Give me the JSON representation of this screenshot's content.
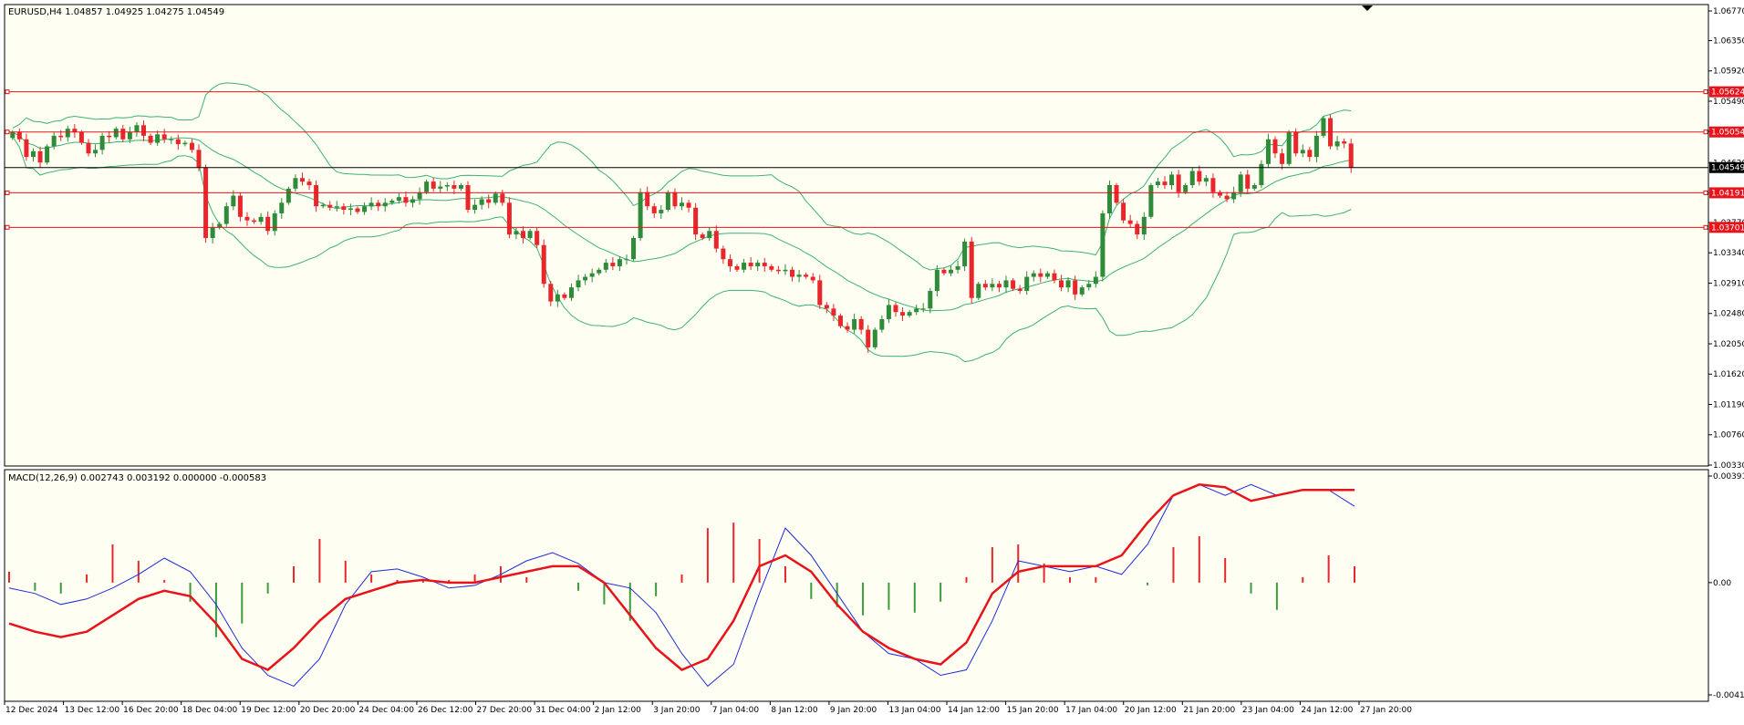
{
  "main_header": "EURUSD,H4  1.04857 1.04925 1.04275 1.04549",
  "macd_header": "MACD(12,26,9) 0.002743 0.003192 0.000000 -0.000583",
  "colors": {
    "background": "#fefef2",
    "bull_candle": "#2e8b3a",
    "bear_candle": "#e8262b",
    "bollinger": "#3cb371",
    "macd_line": "#1f2bd9",
    "signal_line": "#e8141b",
    "hist_pos": "#e8262b",
    "hist_neg": "#3c9c3c",
    "level_line": "#e8141b",
    "price_line": "#000000"
  },
  "chart_data": [
    {
      "type": "candlestick",
      "name": "EURUSD,H4",
      "ylim": [
        1.0033,
        1.0677
      ],
      "y_ticks": [
        "1.06770",
        "1.06350",
        "1.05920",
        "1.05490",
        "1.05060",
        "1.04620",
        "1.04190",
        "1.03770",
        "1.03340",
        "1.02910",
        "1.02480",
        "1.02050",
        "1.01620",
        "1.01190",
        "1.00760",
        "1.00330"
      ],
      "x_labels": [
        "12 Dec 2024",
        "13 Dec 12:00",
        "16 Dec 20:00",
        "18 Dec 04:00",
        "19 Dec 12:00",
        "20 Dec 20:00",
        "24 Dec 04:00",
        "26 Dec 12:00",
        "27 Dec 20:00",
        "31 Dec 04:00",
        "2 Jan 12:00",
        "3 Jan 20:00",
        "7 Jan 04:00",
        "8 Jan 12:00",
        "9 Jan 20:00",
        "13 Jan 04:00",
        "14 Jan 12:00",
        "15 Jan 20:00",
        "17 Jan 04:00",
        "20 Jan 12:00",
        "21 Jan 20:00",
        "23 Jan 04:00",
        "24 Jan 12:00",
        "27 Jan 20:00"
      ],
      "levels": [
        {
          "label": "1.05624",
          "value": 1.05624
        },
        {
          "label": "1.05054",
          "value": 1.05054
        },
        {
          "label": "1.04191",
          "value": 1.04191
        },
        {
          "label": "1.03701",
          "value": 1.03701
        }
      ],
      "current_price": {
        "label": "1.04549",
        "value": 1.04549
      },
      "closes": [
        1.0505,
        1.0495,
        1.047,
        1.0478,
        1.0462,
        1.0485,
        1.05,
        1.0498,
        1.051,
        1.0505,
        1.049,
        1.0475,
        1.048,
        1.05,
        1.0498,
        1.051,
        1.0495,
        1.0505,
        1.0515,
        1.05,
        1.049,
        1.0502,
        1.0495,
        1.0495,
        1.0488,
        1.049,
        1.048,
        1.0455,
        1.0355,
        1.037,
        1.0375,
        1.04,
        1.0415,
        1.0385,
        1.038,
        1.0378,
        1.0385,
        1.0365,
        1.039,
        1.0405,
        1.0425,
        1.044,
        1.0435,
        1.043,
        1.04,
        1.0402,
        1.0398,
        1.04,
        1.0395,
        1.0397,
        1.0392,
        1.04,
        1.0405,
        1.04,
        1.0405,
        1.0408,
        1.0413,
        1.0405,
        1.041,
        1.042,
        1.0435,
        1.0425,
        1.0428,
        1.043,
        1.0425,
        1.043,
        1.0395,
        1.0402,
        1.041,
        1.0405,
        1.0418,
        1.0405,
        1.036,
        1.0365,
        1.0355,
        1.0365,
        1.0345,
        1.029,
        1.0265,
        1.0275,
        1.027,
        1.0285,
        1.0295,
        1.03,
        1.0305,
        1.031,
        1.032,
        1.0315,
        1.0325,
        1.0325,
        1.0355,
        1.042,
        1.04,
        1.039,
        1.0395,
        1.042,
        1.04,
        1.0405,
        1.0398,
        1.036,
        1.0355,
        1.0365,
        1.034,
        1.0325,
        1.0315,
        1.031,
        1.032,
        1.0315,
        1.032,
        1.0315,
        1.031,
        1.0308,
        1.031,
        1.03,
        1.0303,
        1.03,
        1.0295,
        1.026,
        1.0255,
        1.0245,
        1.023,
        1.0225,
        1.024,
        1.0225,
        1.02,
        1.0225,
        1.024,
        1.026,
        1.025,
        1.0245,
        1.025,
        1.0255,
        1.0255,
        1.028,
        1.031,
        1.0305,
        1.031,
        1.0315,
        1.035,
        1.027,
        1.029,
        1.0285,
        1.029,
        1.0285,
        1.0295,
        1.0283,
        1.028,
        1.03,
        1.0305,
        1.03,
        1.0305,
        1.0295,
        1.0285,
        1.0295,
        1.0275,
        1.0285,
        1.029,
        1.03,
        1.039,
        1.043,
        1.0405,
        1.038,
        1.0375,
        1.036,
        1.0385,
        1.043,
        1.0435,
        1.043,
        1.0445,
        1.042,
        1.043,
        1.045,
        1.0435,
        1.044,
        1.042,
        1.0415,
        1.041,
        1.042,
        1.0445,
        1.0425,
        1.043,
        1.046,
        1.0495,
        1.0475,
        1.046,
        1.0505,
        1.0475,
        1.048,
        1.047,
        1.05,
        1.0525,
        1.0485,
        1.0492,
        1.0489,
        1.0455
      ]
    },
    {
      "type": "bar+line",
      "name": "MACD(12,26,9)",
      "ylim": [
        -0.00412,
        0.00391
      ],
      "y_ticks": [
        "0.00391",
        "0.00",
        "-0.00412"
      ],
      "series": [
        {
          "name": "MACD",
          "values": [
            -0.0002,
            -0.0004,
            -0.0008,
            -0.0006,
            -0.0002,
            0.0003,
            0.0009,
            0.0004,
            -0.0008,
            -0.0024,
            -0.0034,
            -0.0038,
            -0.0028,
            -0.0008,
            0.0004,
            0.0005,
            0.0002,
            -0.0002,
            -0.0001,
            0.0003,
            0.0008,
            0.0011,
            0.0007,
            0.0,
            -0.0002,
            -0.0011,
            -0.0026,
            -0.0038,
            -0.003,
            -0.0004,
            0.002,
            0.001,
            -0.0004,
            -0.0018,
            -0.0026,
            -0.0028,
            -0.0034,
            -0.0032,
            -0.0014,
            0.0008,
            0.0006,
            0.0004,
            0.0006,
            0.0003,
            0.0014,
            0.0032,
            0.0036,
            0.0032,
            0.0036,
            0.0032,
            0.0034,
            0.0034,
            0.0028
          ]
        },
        {
          "name": "Signal",
          "values": [
            -0.0015,
            -0.0018,
            -0.002,
            -0.0018,
            -0.0012,
            -0.0006,
            -0.0003,
            -0.0005,
            -0.0015,
            -0.0028,
            -0.0032,
            -0.0024,
            -0.0014,
            -0.0006,
            -0.0003,
            0.0,
            0.0001,
            0.0,
            0.0,
            0.0002,
            0.0004,
            0.0006,
            0.0006,
            0.0,
            -0.0012,
            -0.0024,
            -0.0032,
            -0.0028,
            -0.0014,
            0.0006,
            0.001,
            0.0004,
            -0.0008,
            -0.0018,
            -0.0024,
            -0.0028,
            -0.003,
            -0.0022,
            -0.0004,
            0.0004,
            0.0006,
            0.0006,
            0.0006,
            0.001,
            0.0022,
            0.0032,
            0.0036,
            0.0035,
            0.003,
            0.0032,
            0.0034,
            0.0034,
            0.0034
          ]
        },
        {
          "name": "Histogram",
          "values": [
            0.0004,
            -0.0003,
            -0.0004,
            0.0003,
            0.0014,
            0.0008,
            0.0001,
            -0.0007,
            -0.002,
            -0.0015,
            -0.0004,
            0.0006,
            0.0016,
            0.0008,
            0.0003,
            0.0001,
            0.0001,
            0.0001,
            0.0003,
            0.0006,
            0.0002,
            0.0,
            -0.0003,
            -0.0008,
            -0.0014,
            -0.0005,
            0.0003,
            0.002,
            0.0022,
            0.0016,
            0.0006,
            -0.0006,
            -0.0009,
            -0.0012,
            -0.001,
            -0.0011,
            -0.0007,
            0.0002,
            0.0013,
            0.0014,
            0.0007,
            0.0002,
            0.0002,
            0.0,
            -0.0001,
            0.0013,
            0.0017,
            0.0009,
            -0.0004,
            -0.001,
            0.0002,
            0.001,
            0.0006
          ]
        }
      ]
    }
  ]
}
